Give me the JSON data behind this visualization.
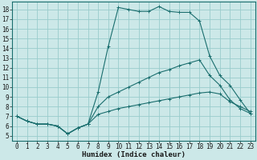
{
  "xlabel": "Humidex (Indice chaleur)",
  "bg_color": "#cce8e8",
  "grid_color": "#99cccc",
  "line_color": "#1a6e6e",
  "x_ticks": [
    0,
    1,
    2,
    3,
    4,
    5,
    6,
    7,
    8,
    9,
    10,
    11,
    12,
    13,
    14,
    15,
    16,
    17,
    18,
    19,
    20,
    21,
    22,
    23
  ],
  "y_ticks": [
    5,
    6,
    7,
    8,
    9,
    10,
    11,
    12,
    13,
    14,
    15,
    16,
    17,
    18
  ],
  "xlim": [
    -0.5,
    23.5
  ],
  "ylim": [
    4.5,
    18.8
  ],
  "line1_x": [
    0,
    1,
    2,
    3,
    4,
    5,
    6,
    7,
    8,
    9,
    10,
    11,
    12,
    13,
    14,
    15,
    16,
    17,
    18,
    19,
    20,
    21,
    22,
    23
  ],
  "line1_y": [
    7.0,
    6.5,
    6.2,
    6.2,
    6.0,
    5.2,
    5.8,
    6.2,
    9.5,
    14.2,
    18.2,
    18.0,
    17.8,
    17.8,
    18.3,
    17.8,
    17.7,
    17.7,
    16.8,
    13.2,
    11.2,
    10.2,
    8.7,
    7.3
  ],
  "line2_x": [
    0,
    1,
    2,
    3,
    4,
    5,
    6,
    7,
    8,
    9,
    10,
    11,
    12,
    13,
    14,
    15,
    16,
    17,
    18,
    19,
    20,
    21,
    22,
    23
  ],
  "line2_y": [
    7.0,
    6.5,
    6.2,
    6.2,
    6.0,
    5.2,
    5.8,
    6.2,
    8.0,
    9.0,
    9.5,
    10.0,
    10.5,
    11.0,
    11.5,
    11.8,
    12.2,
    12.5,
    12.8,
    11.2,
    10.2,
    8.7,
    7.8,
    7.3
  ],
  "line3_x": [
    0,
    1,
    2,
    3,
    4,
    5,
    6,
    7,
    8,
    9,
    10,
    11,
    12,
    13,
    14,
    15,
    16,
    17,
    18,
    19,
    20,
    21,
    22,
    23
  ],
  "line3_y": [
    7.0,
    6.5,
    6.2,
    6.2,
    6.0,
    5.2,
    5.8,
    6.2,
    7.2,
    7.5,
    7.8,
    8.0,
    8.2,
    8.4,
    8.6,
    8.8,
    9.0,
    9.2,
    9.4,
    9.5,
    9.3,
    8.5,
    8.0,
    7.5
  ],
  "tick_fontsize": 5.5,
  "xlabel_fontsize": 6.5,
  "lw": 0.8,
  "marker_size": 2.5
}
